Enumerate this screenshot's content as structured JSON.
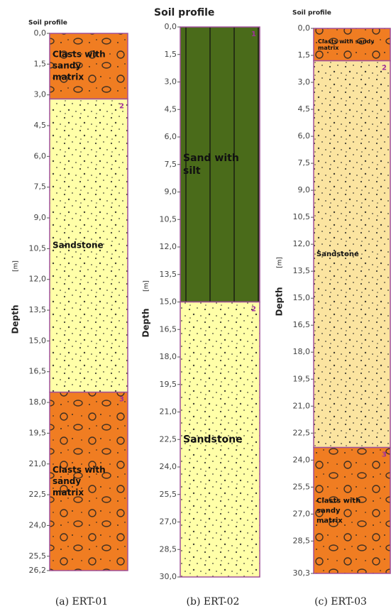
{
  "panels": [
    {
      "title": "Soil profile",
      "axis_label": "Depth",
      "axis_unit": "[m]",
      "caption": "(a) ERT-01",
      "ticks": [
        {
          "value": 0,
          "label": "0,0"
        },
        {
          "value": 1.5,
          "label": "1,5"
        },
        {
          "value": 3,
          "label": "3,0"
        },
        {
          "value": 4.5,
          "label": "4,5"
        },
        {
          "value": 6,
          "label": "6,0"
        },
        {
          "value": 7.5,
          "label": "7,5"
        },
        {
          "value": 9,
          "label": "9,0"
        },
        {
          "value": 10.5,
          "label": "10,5"
        },
        {
          "value": 12,
          "label": "12,0"
        },
        {
          "value": 13.5,
          "label": "13,5"
        },
        {
          "value": 15,
          "label": "15,0"
        },
        {
          "value": 16.5,
          "label": "16,5"
        },
        {
          "value": 18,
          "label": "18,0"
        },
        {
          "value": 19.5,
          "label": "19,5"
        },
        {
          "value": 21,
          "label": "21,0"
        },
        {
          "value": 22.5,
          "label": "22,5"
        },
        {
          "value": 24,
          "label": "24,0"
        },
        {
          "value": 25.5,
          "label": "25,5"
        },
        {
          "value": 26.2,
          "label": "26,2"
        }
      ],
      "layers": [
        {
          "top": 0,
          "bottom": 3.2,
          "color": "#f07d22",
          "label_lines": [
            "Clasts with",
            "sandy",
            "matrix"
          ]
        },
        {
          "top": 3.2,
          "bottom": 17.5,
          "color": "#ffffa8",
          "label_lines": [
            "Sandstone"
          ],
          "number": "2"
        },
        {
          "top": 17.5,
          "bottom": 26.2,
          "color": "#f07d22",
          "label_lines": [
            "Clasts with",
            "sandy",
            "matrix"
          ],
          "number": "3"
        }
      ]
    },
    {
      "title": "Soil profile",
      "axis_label": "Depth",
      "axis_unit": "[m]",
      "caption": "(b) ERT-02",
      "ticks": [
        {
          "value": 0,
          "label": "0,0"
        },
        {
          "value": 1.5,
          "label": "1,5"
        },
        {
          "value": 3,
          "label": "3,0"
        },
        {
          "value": 4.5,
          "label": "4,5"
        },
        {
          "value": 6,
          "label": "6,0"
        },
        {
          "value": 7.5,
          "label": "7,5"
        },
        {
          "value": 9,
          "label": "9,0"
        },
        {
          "value": 10.5,
          "label": "10,5"
        },
        {
          "value": 12,
          "label": "12,0"
        },
        {
          "value": 13.5,
          "label": "13,5"
        },
        {
          "value": 15,
          "label": "15,0"
        },
        {
          "value": 16.5,
          "label": "16,5"
        },
        {
          "value": 18,
          "label": "18,0"
        },
        {
          "value": 19.5,
          "label": "19,5"
        },
        {
          "value": 21,
          "label": "21,0"
        },
        {
          "value": 22.5,
          "label": "22,5"
        },
        {
          "value": 24,
          "label": "24,0"
        },
        {
          "value": 25.5,
          "label": "25,5"
        },
        {
          "value": 27,
          "label": "27,0"
        },
        {
          "value": 28.5,
          "label": "28,5"
        },
        {
          "value": 30,
          "label": "30,0"
        }
      ],
      "layers": [
        {
          "top": 0,
          "bottom": 15,
          "color": "#4a6b1a",
          "label_lines": [
            "Sand with",
            "silt"
          ],
          "number": "1"
        },
        {
          "top": 15,
          "bottom": 30,
          "color": "#ffffa8",
          "label_lines": [
            "Sandstone"
          ],
          "number": "2"
        }
      ]
    },
    {
      "title": "Soil profile",
      "axis_label": "Depth",
      "axis_unit": "[m]",
      "caption": "(c) ERT-03",
      "ticks": [
        {
          "value": 0,
          "label": "0,0"
        },
        {
          "value": 1.5,
          "label": "1,5"
        },
        {
          "value": 3,
          "label": "3,0"
        },
        {
          "value": 4.5,
          "label": "4,5"
        },
        {
          "value": 6,
          "label": "6,0"
        },
        {
          "value": 7.5,
          "label": "7,5"
        },
        {
          "value": 9,
          "label": "9,0"
        },
        {
          "value": 10.5,
          "label": "10,5"
        },
        {
          "value": 12,
          "label": "12,0"
        },
        {
          "value": 13.5,
          "label": "13,5"
        },
        {
          "value": 15,
          "label": "15,0"
        },
        {
          "value": 16.5,
          "label": "16,5"
        },
        {
          "value": 18,
          "label": "18,0"
        },
        {
          "value": 19.5,
          "label": "19,5"
        },
        {
          "value": 21,
          "label": "21,0"
        },
        {
          "value": 22.5,
          "label": "22,5"
        },
        {
          "value": 24,
          "label": "24,0"
        },
        {
          "value": 25.5,
          "label": "25,5"
        },
        {
          "value": 27,
          "label": "27,0"
        },
        {
          "value": 28.5,
          "label": "28,5"
        },
        {
          "value": 30.3,
          "label": "30,3"
        }
      ],
      "layers": [
        {
          "top": 0,
          "bottom": 1.8,
          "color": "#f07d22",
          "label_lines": [
            "Clasts with sandy",
            "matrix"
          ]
        },
        {
          "top": 1.8,
          "bottom": 23.3,
          "color": "#fbe4a0",
          "label_lines": [
            "Sandstone"
          ],
          "number": "2"
        },
        {
          "top": 23.3,
          "bottom": 30.3,
          "color": "#f07d22",
          "label_lines": [
            "Clasts with",
            "sandy",
            "matrix"
          ],
          "number": "3"
        }
      ]
    }
  ]
}
